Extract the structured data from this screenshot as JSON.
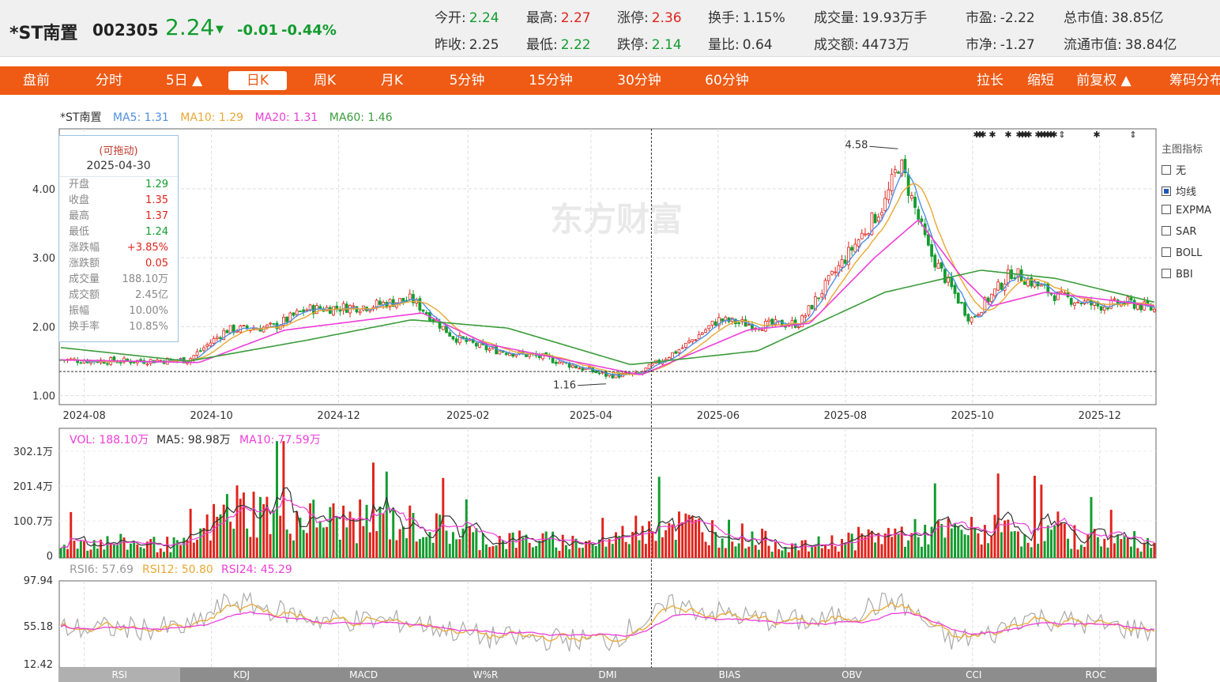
{
  "quote": {
    "name": "*ST南置",
    "code": "002305",
    "price": "2.24",
    "change": "-0.01",
    "change_pct": "-0.44%",
    "stats": [
      {
        "label": "今开:",
        "value": "2.24",
        "tone": "green"
      },
      {
        "label": "最高:",
        "value": "2.27",
        "tone": "red"
      },
      {
        "label": "涨停:",
        "value": "2.36",
        "tone": "red"
      },
      {
        "label": "换手:",
        "value": "1.15%",
        "tone": "dark"
      },
      {
        "label": "成交量:",
        "value": "19.93万手",
        "tone": "dark"
      },
      {
        "label": "市盈:",
        "value": "-2.22",
        "tone": "dark"
      },
      {
        "label": "总市值:",
        "value": "38.85亿",
        "tone": "dark"
      },
      {
        "label": "昨收:",
        "value": "2.25",
        "tone": "dark"
      },
      {
        "label": "最低:",
        "value": "2.22",
        "tone": "green"
      },
      {
        "label": "跌停:",
        "value": "2.14",
        "tone": "green"
      },
      {
        "label": "量比:",
        "value": "0.64",
        "tone": "dark"
      },
      {
        "label": "成交额:",
        "value": "4473万",
        "tone": "dark"
      },
      {
        "label": "市净:",
        "value": "-1.27",
        "tone": "dark"
      },
      {
        "label": "流通市值:",
        "value": "38.84亿",
        "tone": "dark"
      }
    ]
  },
  "toolbar": {
    "tabs": [
      "盘前",
      "分时",
      "5日 ▲",
      "日K",
      "周K",
      "月K",
      "5分钟",
      "15分钟",
      "30分钟",
      "60分钟"
    ],
    "active": "日K",
    "right": [
      "拉长",
      "缩短",
      "前复权 ▲",
      "筹码分布"
    ]
  },
  "main_legend": {
    "name": "*ST南置",
    "ma5": "MA5: 1.31",
    "ma10": "MA10: 1.29",
    "ma20": "MA20: 1.31",
    "ma60": "MA60: 1.46"
  },
  "colors": {
    "up": "#e0231b",
    "down": "#129c2e",
    "ma5": "#4f8fe3",
    "ma10": "#e8a834",
    "ma20": "#ee3ed8",
    "ma60": "#3a9c3a",
    "accent": "#ef5a14"
  },
  "watermark": "东方财富",
  "info_box": {
    "drag": "(可拖动)",
    "date": "2025-04-30",
    "rows": [
      {
        "k": "开盘",
        "v": "1.29",
        "tone": "green"
      },
      {
        "k": "收盘",
        "v": "1.35",
        "tone": "red"
      },
      {
        "k": "最高",
        "v": "1.37",
        "tone": "red"
      },
      {
        "k": "最低",
        "v": "1.24",
        "tone": "green"
      },
      {
        "k": "涨跌幅",
        "v": "+3.85%",
        "tone": "red"
      },
      {
        "k": "涨跌额",
        "v": "0.05",
        "tone": "red"
      },
      {
        "k": "成交量",
        "v": "188.10万",
        "tone": "grey"
      },
      {
        "k": "成交额",
        "v": "2.45亿",
        "tone": "grey"
      },
      {
        "k": "振幅",
        "v": "10.00%",
        "tone": "grey"
      },
      {
        "k": "换手率",
        "v": "10.85%",
        "tone": "grey"
      }
    ]
  },
  "indicators": {
    "title": "主图指标",
    "items": [
      "无",
      "均线",
      "EXPMA",
      "SAR",
      "BOLL",
      "BBI"
    ],
    "selected": "均线"
  },
  "vol_legend": {
    "vol": "VOL: 188.10万",
    "ma5": "MA5: 98.98万",
    "ma10": "MA10: 77.59万"
  },
  "rsi_legend": {
    "rsi6": "RSI6: 57.69",
    "rsi12": "RSI12: 50.80",
    "rsi24": "RSI24: 45.29"
  },
  "bottom_tabs": [
    "RSI",
    "KDJ",
    "MACD",
    "W%R",
    "DMI",
    "BIAS",
    "OBV",
    "CCI",
    "ROC"
  ],
  "bottom_active": "RSI",
  "chart_data": {
    "type": "candlestick",
    "x_ticks": [
      "2024-08",
      "2024-10",
      "2024-12",
      "2025-02",
      "2025-04",
      "2025-06",
      "2025-08",
      "2025-10",
      "2025-12"
    ],
    "price_ticks": [
      "1.00",
      "2.00",
      "3.00",
      "4.00"
    ],
    "price_ylim": [
      0.87,
      4.87
    ],
    "annotations": {
      "high": "4.58",
      "low": "1.16"
    },
    "price_path": [
      [
        "2024-07-20",
        1.52
      ],
      [
        "2024-08-20",
        1.5
      ],
      [
        "2024-09-20",
        1.52
      ],
      [
        "2024-10-08",
        1.95
      ],
      [
        "2024-10-31",
        2.0
      ],
      [
        "2024-11-15",
        2.25
      ],
      [
        "2024-12-15",
        2.3
      ],
      [
        "2025-01-05",
        2.4
      ],
      [
        "2025-01-25",
        1.85
      ],
      [
        "2025-02-10",
        1.68
      ],
      [
        "2025-03-10",
        1.55
      ],
      [
        "2025-04-08",
        1.3
      ],
      [
        "2025-04-23",
        1.3
      ],
      [
        "2025-05-15",
        1.7
      ],
      [
        "2025-06-01",
        2.1
      ],
      [
        "2025-06-20",
        2.02
      ],
      [
        "2025-07-10",
        2.05
      ],
      [
        "2025-07-25",
        2.7
      ],
      [
        "2025-08-20",
        3.8
      ],
      [
        "2025-08-27",
        4.4
      ],
      [
        "2025-09-10",
        3.1
      ],
      [
        "2025-09-30",
        2.1
      ],
      [
        "2025-10-20",
        2.8
      ],
      [
        "2025-11-10",
        2.45
      ],
      [
        "2025-11-30",
        2.3
      ],
      [
        "2025-12-15",
        2.35
      ],
      [
        "2025-12-28",
        2.24
      ]
    ],
    "ma60_path": [
      [
        "2024-07-20",
        1.7
      ],
      [
        "2024-09-20",
        1.5
      ],
      [
        "2024-11-15",
        1.8
      ],
      [
        "2025-01-05",
        2.1
      ],
      [
        "2025-02-20",
        1.98
      ],
      [
        "2025-04-20",
        1.45
      ],
      [
        "2025-06-20",
        1.65
      ],
      [
        "2025-08-20",
        2.5
      ],
      [
        "2025-10-05",
        2.82
      ],
      [
        "2025-11-10",
        2.7
      ],
      [
        "2025-12-28",
        2.35
      ]
    ],
    "ma20_path": [
      [
        "2024-07-20",
        1.52
      ],
      [
        "2024-09-25",
        1.48
      ],
      [
        "2024-11-05",
        1.95
      ],
      [
        "2025-01-10",
        2.2
      ],
      [
        "2025-02-10",
        1.75
      ],
      [
        "2025-04-25",
        1.3
      ],
      [
        "2025-06-15",
        1.95
      ],
      [
        "2025-07-15",
        2.05
      ],
      [
        "2025-08-15",
        3.0
      ],
      [
        "2025-09-05",
        3.55
      ],
      [
        "2025-09-25",
        2.75
      ],
      [
        "2025-10-10",
        2.3
      ],
      [
        "2025-11-05",
        2.5
      ],
      [
        "2025-12-28",
        2.3
      ]
    ],
    "vol_ticks": [
      "302.1万",
      "201.4万",
      "100.7万",
      "0"
    ],
    "vol_ylim": [
      0,
      302.1
    ],
    "rsi_ticks": [
      "97.94",
      "55.18",
      "12.42"
    ],
    "rsi_ylim": [
      12.42,
      97.94
    ]
  }
}
